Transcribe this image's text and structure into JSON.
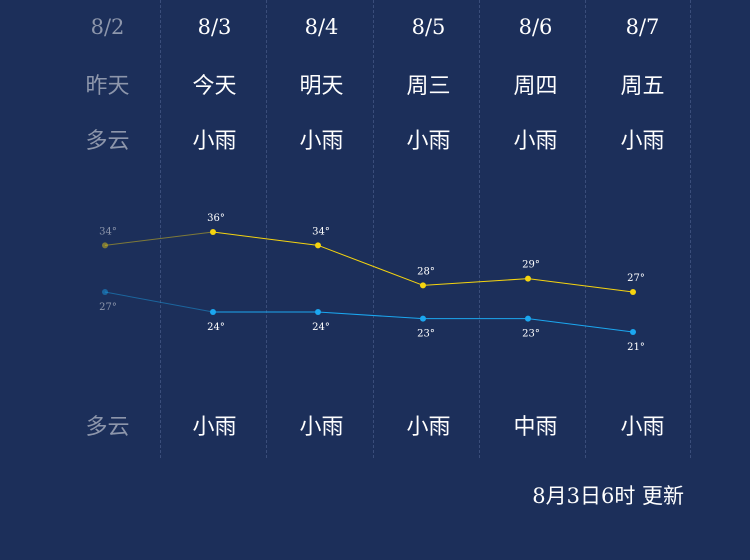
{
  "days": [
    {
      "date": "8/2",
      "day_name": "昨天",
      "weather_day": "多云",
      "weather_night": "多云",
      "high": "34°",
      "low": "27°",
      "past": true
    },
    {
      "date": "8/3",
      "day_name": "今天",
      "weather_day": "小雨",
      "weather_night": "小雨",
      "high": "36°",
      "low": "24°",
      "past": false
    },
    {
      "date": "8/4",
      "day_name": "明天",
      "weather_day": "小雨",
      "weather_night": "小雨",
      "high": "34°",
      "low": "24°",
      "past": false
    },
    {
      "date": "8/5",
      "day_name": "周三",
      "weather_day": "小雨",
      "weather_night": "小雨",
      "high": "28°",
      "low": "23°",
      "past": false
    },
    {
      "date": "8/6",
      "day_name": "周四",
      "weather_day": "小雨",
      "weather_night": "中雨",
      "high": "29°",
      "low": "23°",
      "past": false
    },
    {
      "date": "8/7",
      "day_name": "周五",
      "weather_day": "小雨",
      "weather_night": "小雨",
      "high": "27°",
      "low": "21°",
      "past": false
    }
  ],
  "update_text": "8月3日6时 更新",
  "colors": {
    "background": "#1c2f5a",
    "high_line": "#f5d40f",
    "low_line": "#1ba7f0",
    "past_text": "#8d96ab",
    "separator": "#3a4d7a"
  }
}
